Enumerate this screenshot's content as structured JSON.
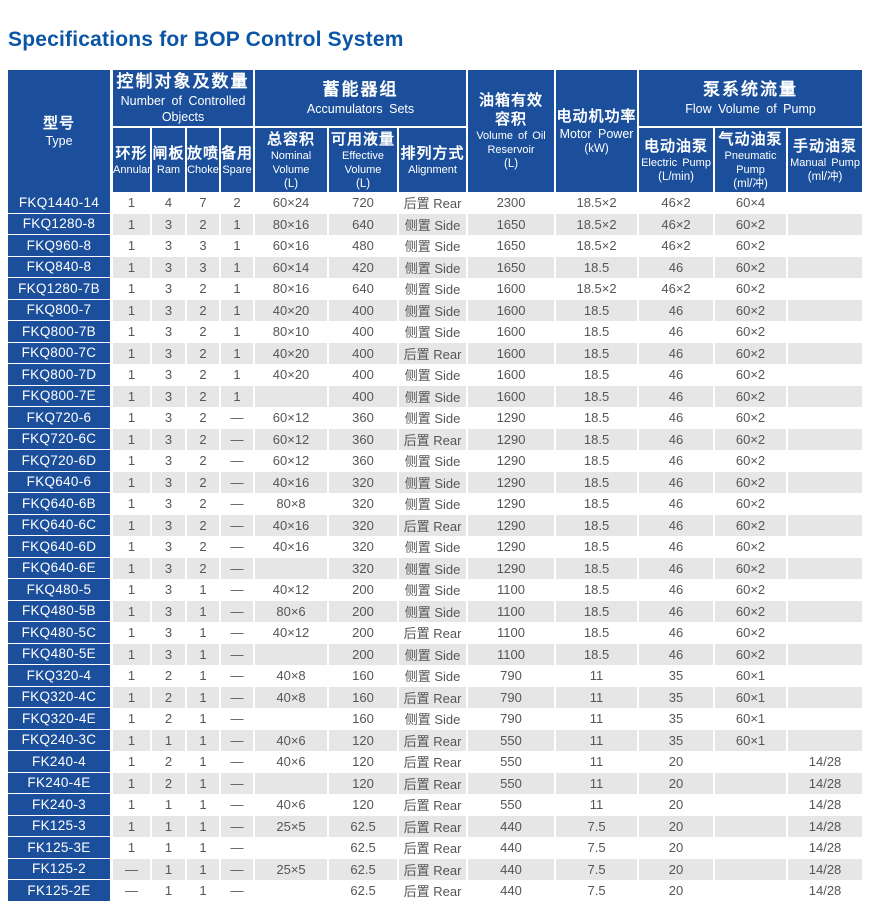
{
  "title": "Specifications for BOP Control System",
  "colors": {
    "table_blue": "#1b4f9c",
    "title_blue": "#0b55a6",
    "stripe_gray": "#e6e6e6",
    "data_text": "#54565a"
  },
  "table": {
    "header": {
      "type": {
        "zh": "型号",
        "en": "Type"
      },
      "controlled": {
        "zh": "控制对象及数量",
        "en": "Number of Controlled Objects",
        "subs": [
          {
            "zh": "环形",
            "en": "Annular"
          },
          {
            "zh": "闸板",
            "en": "Ram"
          },
          {
            "zh": "放喷",
            "en": "Choke"
          },
          {
            "zh": "备用",
            "en": "Spare"
          }
        ]
      },
      "accumulators": {
        "zh": "蓄能器组",
        "en": "Accumulators Sets",
        "subs": [
          {
            "zh": "总容积",
            "en": "Nominal Volume",
            "unit": "(L)"
          },
          {
            "zh": "可用液量",
            "en": "Effective Volume",
            "unit": "(L)"
          },
          {
            "zh": "排列方式",
            "en": "Alignment"
          }
        ]
      },
      "reservoir": {
        "zh_line1": "油箱有效",
        "zh_line2": "容积",
        "en_line1": "Volume of Oil",
        "en_line2": "Reservoir",
        "unit": "(L)"
      },
      "motor": {
        "zh": "电动机功率",
        "en": "Motor Power",
        "unit": "(kW)"
      },
      "pump": {
        "zh": "泵系统流量",
        "en": "Flow Volume of Pump",
        "subs": [
          {
            "zh": "电动油泵",
            "en": "Electric Pump",
            "unit": "(L/min)"
          },
          {
            "zh": "气动油泵",
            "en": "Pneumatic Pump",
            "unit": "(ml/冲)"
          },
          {
            "zh": "手动油泵",
            "en": "Manual Pump",
            "unit": "(ml/冲)"
          }
        ]
      }
    },
    "rows": [
      [
        "FKQ1440-14",
        "1",
        "4",
        "7",
        "2",
        "60×24",
        "720",
        "后置 Rear",
        "2300",
        "18.5×2",
        "46×2",
        "60×4",
        ""
      ],
      [
        "FKQ1280-8",
        "1",
        "3",
        "2",
        "1",
        "80×16",
        "640",
        "侧置 Side",
        "1650",
        "18.5×2",
        "46×2",
        "60×2",
        ""
      ],
      [
        "FKQ960-8",
        "1",
        "3",
        "3",
        "1",
        "60×16",
        "480",
        "侧置 Side",
        "1650",
        "18.5×2",
        "46×2",
        "60×2",
        ""
      ],
      [
        "FKQ840-8",
        "1",
        "3",
        "3",
        "1",
        "60×14",
        "420",
        "侧置 Side",
        "1650",
        "18.5",
        "46",
        "60×2",
        ""
      ],
      [
        "FKQ1280-7B",
        "1",
        "3",
        "2",
        "1",
        "80×16",
        "640",
        "侧置 Side",
        "1600",
        "18.5×2",
        "46×2",
        "60×2",
        ""
      ],
      [
        "FKQ800-7",
        "1",
        "3",
        "2",
        "1",
        "40×20",
        "400",
        "侧置 Side",
        "1600",
        "18.5",
        "46",
        "60×2",
        ""
      ],
      [
        "FKQ800-7B",
        "1",
        "3",
        "2",
        "1",
        "80×10",
        "400",
        "侧置 Side",
        "1600",
        "18.5",
        "46",
        "60×2",
        ""
      ],
      [
        "FKQ800-7C",
        "1",
        "3",
        "2",
        "1",
        "40×20",
        "400",
        "后置 Rear",
        "1600",
        "18.5",
        "46",
        "60×2",
        ""
      ],
      [
        "FKQ800-7D",
        "1",
        "3",
        "2",
        "1",
        "40×20",
        "400",
        "侧置 Side",
        "1600",
        "18.5",
        "46",
        "60×2",
        ""
      ],
      [
        "FKQ800-7E",
        "1",
        "3",
        "2",
        "1",
        "",
        "400",
        "侧置 Side",
        "1600",
        "18.5",
        "46",
        "60×2",
        ""
      ],
      [
        "FKQ720-6",
        "1",
        "3",
        "2",
        "—",
        "60×12",
        "360",
        "侧置 Side",
        "1290",
        "18.5",
        "46",
        "60×2",
        ""
      ],
      [
        "FKQ720-6C",
        "1",
        "3",
        "2",
        "—",
        "60×12",
        "360",
        "后置 Rear",
        "1290",
        "18.5",
        "46",
        "60×2",
        ""
      ],
      [
        "FKQ720-6D",
        "1",
        "3",
        "2",
        "—",
        "60×12",
        "360",
        "侧置 Side",
        "1290",
        "18.5",
        "46",
        "60×2",
        ""
      ],
      [
        "FKQ640-6",
        "1",
        "3",
        "2",
        "—",
        "40×16",
        "320",
        "侧置 Side",
        "1290",
        "18.5",
        "46",
        "60×2",
        ""
      ],
      [
        "FKQ640-6B",
        "1",
        "3",
        "2",
        "—",
        "80×8",
        "320",
        "侧置 Side",
        "1290",
        "18.5",
        "46",
        "60×2",
        ""
      ],
      [
        "FKQ640-6C",
        "1",
        "3",
        "2",
        "—",
        "40×16",
        "320",
        "后置 Rear",
        "1290",
        "18.5",
        "46",
        "60×2",
        ""
      ],
      [
        "FKQ640-6D",
        "1",
        "3",
        "2",
        "—",
        "40×16",
        "320",
        "侧置 Side",
        "1290",
        "18.5",
        "46",
        "60×2",
        ""
      ],
      [
        "FKQ640-6E",
        "1",
        "3",
        "2",
        "—",
        "",
        "320",
        "侧置 Side",
        "1290",
        "18.5",
        "46",
        "60×2",
        ""
      ],
      [
        "FKQ480-5",
        "1",
        "3",
        "1",
        "—",
        "40×12",
        "200",
        "侧置 Side",
        "1100",
        "18.5",
        "46",
        "60×2",
        ""
      ],
      [
        "FKQ480-5B",
        "1",
        "3",
        "1",
        "—",
        "80×6",
        "200",
        "侧置 Side",
        "1100",
        "18.5",
        "46",
        "60×2",
        ""
      ],
      [
        "FKQ480-5C",
        "1",
        "3",
        "1",
        "—",
        "40×12",
        "200",
        "后置 Rear",
        "1100",
        "18.5",
        "46",
        "60×2",
        ""
      ],
      [
        "FKQ480-5E",
        "1",
        "3",
        "1",
        "—",
        "",
        "200",
        "侧置 Side",
        "1100",
        "18.5",
        "46",
        "60×2",
        ""
      ],
      [
        "FKQ320-4",
        "1",
        "2",
        "1",
        "—",
        "40×8",
        "160",
        "侧置 Side",
        "790",
        "11",
        "35",
        "60×1",
        ""
      ],
      [
        "FKQ320-4C",
        "1",
        "2",
        "1",
        "—",
        "40×8",
        "160",
        "后置 Rear",
        "790",
        "11",
        "35",
        "60×1",
        ""
      ],
      [
        "FKQ320-4E",
        "1",
        "2",
        "1",
        "—",
        "",
        "160",
        "侧置 Side",
        "790",
        "11",
        "35",
        "60×1",
        ""
      ],
      [
        "FKQ240-3C",
        "1",
        "1",
        "1",
        "—",
        "40×6",
        "120",
        "后置 Rear",
        "550",
        "11",
        "35",
        "60×1",
        ""
      ],
      [
        "FK240-4",
        "1",
        "2",
        "1",
        "—",
        "40×6",
        "120",
        "后置 Rear",
        "550",
        "11",
        "20",
        "",
        "14/28"
      ],
      [
        "FK240-4E",
        "1",
        "2",
        "1",
        "—",
        "",
        "120",
        "后置 Rear",
        "550",
        "11",
        "20",
        "",
        "14/28"
      ],
      [
        "FK240-3",
        "1",
        "1",
        "1",
        "—",
        "40×6",
        "120",
        "后置 Rear",
        "550",
        "11",
        "20",
        "",
        "14/28"
      ],
      [
        "FK125-3",
        "1",
        "1",
        "1",
        "—",
        "25×5",
        "62.5",
        "后置 Rear",
        "440",
        "7.5",
        "20",
        "",
        "14/28"
      ],
      [
        "FK125-3E",
        "1",
        "1",
        "1",
        "—",
        "",
        "62.5",
        "后置 Rear",
        "440",
        "7.5",
        "20",
        "",
        "14/28"
      ],
      [
        "FK125-2",
        "—",
        "1",
        "1",
        "—",
        "25×5",
        "62.5",
        "后置 Rear",
        "440",
        "7.5",
        "20",
        "",
        "14/28"
      ],
      [
        "FK125-2E",
        "—",
        "1",
        "1",
        "—",
        "",
        "62.5",
        "后置 Rear",
        "440",
        "7.5",
        "20",
        "",
        "14/28"
      ]
    ]
  }
}
